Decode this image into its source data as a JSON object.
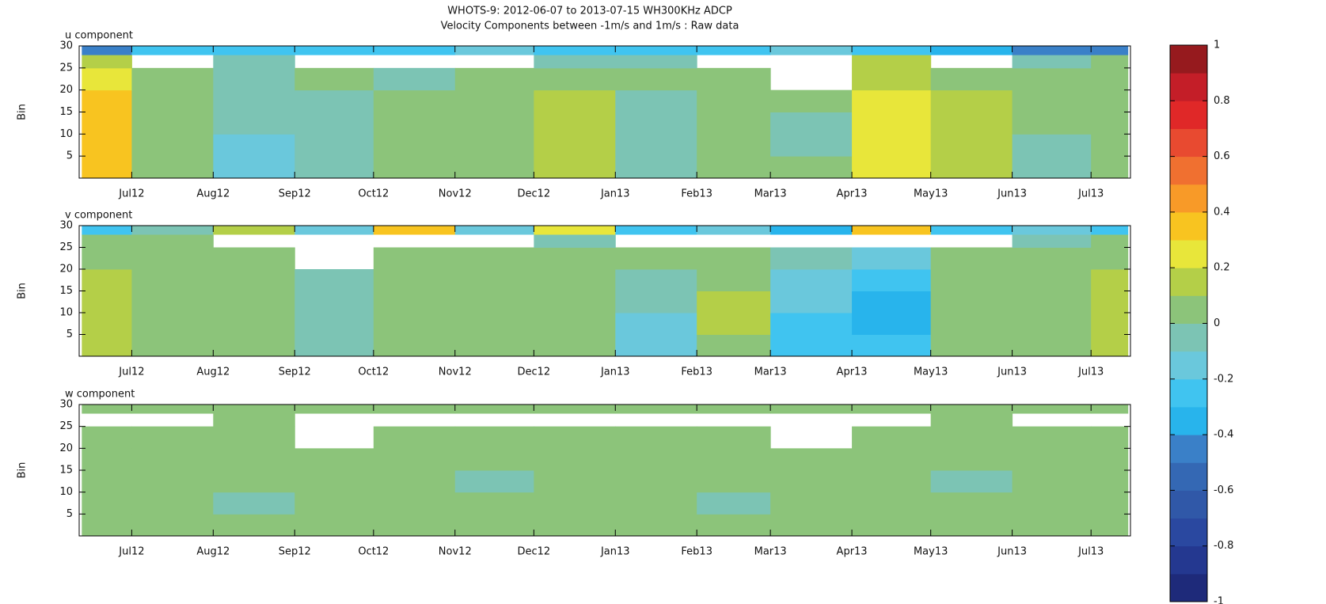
{
  "title": "WHOTS-9:  2012-06-07 to 2013-07-15 WH300KHz ADCP",
  "subtitle": "Velocity Components between -1m/s and 1m/s : Raw data",
  "colorbar": {
    "clim": [
      -1,
      1
    ],
    "colors": [
      "#1e2a7a",
      "#243890",
      "#2a48a0",
      "#3058a8",
      "#3468b4",
      "#3a80c8",
      "#28b4ec",
      "#40c4f0",
      "#6ac8dc",
      "#7cc4b4",
      "#8cc47a",
      "#b4cf48",
      "#e8e63a",
      "#f8c420",
      "#f89a28",
      "#f07030",
      "#e84a30",
      "#e02828",
      "#c41e28",
      "#961a1e"
    ],
    "ticks": [
      -1,
      -0.8,
      -0.6,
      -0.4,
      -0.2,
      0,
      0.2,
      0.4,
      0.6,
      0.8,
      1
    ]
  },
  "chart_data": [
    {
      "type": "heatmap",
      "title": "u component",
      "y_label": "Bin",
      "xbins": [
        "2012-06-12",
        "2012-07-01",
        "2012-08-01",
        "2012-09-01",
        "2012-10-01",
        "2012-11-01",
        "2012-12-01",
        "2013-01-01",
        "2013-02-01",
        "2013-03-01",
        "2013-04-01",
        "2013-05-01",
        "2013-06-01",
        "2013-07-01",
        "2013-07-15"
      ],
      "ybins": [
        0,
        5,
        10,
        15,
        20,
        25,
        28,
        30
      ],
      "xlim": [
        "2012-06-11",
        "2013-07-16"
      ],
      "ylim": [
        0,
        30
      ],
      "xticks": [
        {
          "value": "2012-07-01",
          "label": "Jul12"
        },
        {
          "value": "2012-08-01",
          "label": "Aug12"
        },
        {
          "value": "2012-09-01",
          "label": "Sep12"
        },
        {
          "value": "2012-10-01",
          "label": "Oct12"
        },
        {
          "value": "2012-11-01",
          "label": "Nov12"
        },
        {
          "value": "2012-12-01",
          "label": "Dec12"
        },
        {
          "value": "2013-01-01",
          "label": "Jan13"
        },
        {
          "value": "2013-02-01",
          "label": "Feb13"
        },
        {
          "value": "2013-03-01",
          "label": "Mar13"
        },
        {
          "value": "2013-04-01",
          "label": "Apr13"
        },
        {
          "value": "2013-05-01",
          "label": "May13"
        },
        {
          "value": "2013-06-01",
          "label": "Jun13"
        },
        {
          "value": "2013-07-01",
          "label": "Jul13"
        }
      ],
      "yticks": [
        5,
        10,
        15,
        20,
        25,
        30
      ],
      "values": [
        [
          0.3,
          0.05,
          -0.15,
          -0.1,
          0.0,
          0.05,
          0.1,
          -0.05,
          0.0,
          0.0,
          0.2,
          0.1,
          -0.05,
          0.05
        ],
        [
          0.3,
          0.05,
          -0.15,
          -0.1,
          0.0,
          0.05,
          0.1,
          -0.05,
          0.0,
          -0.05,
          0.2,
          0.1,
          -0.05,
          0.05
        ],
        [
          0.35,
          0.05,
          -0.1,
          -0.05,
          0.0,
          0.05,
          0.15,
          -0.05,
          0.0,
          -0.05,
          0.2,
          0.1,
          0.0,
          0.05
        ],
        [
          0.3,
          0.05,
          -0.1,
          -0.05,
          0.0,
          0.05,
          0.1,
          -0.05,
          0.0,
          0.0,
          0.2,
          0.1,
          0.0,
          0.05
        ],
        [
          0.25,
          0.0,
          -0.05,
          0.0,
          -0.05,
          0.0,
          0.05,
          0.0,
          0.0,
          null,
          0.1,
          0.05,
          0.0,
          0.05
        ],
        [
          0.1,
          null,
          -0.1,
          null,
          null,
          null,
          -0.1,
          -0.1,
          null,
          null,
          0.1,
          null,
          -0.1,
          0.0
        ],
        [
          -0.5,
          -0.3,
          -0.3,
          -0.3,
          -0.3,
          -0.2,
          -0.3,
          -0.3,
          -0.3,
          -0.2,
          -0.3,
          -0.4,
          -0.5,
          -0.5
        ]
      ]
    },
    {
      "type": "heatmap",
      "title": "v component",
      "y_label": "Bin",
      "xbins": [
        "2012-06-12",
        "2012-07-01",
        "2012-08-01",
        "2012-09-01",
        "2012-10-01",
        "2012-11-01",
        "2012-12-01",
        "2013-01-01",
        "2013-02-01",
        "2013-03-01",
        "2013-04-01",
        "2013-05-01",
        "2013-06-01",
        "2013-07-01",
        "2013-07-15"
      ],
      "ybins": [
        0,
        5,
        10,
        15,
        20,
        25,
        28,
        30
      ],
      "xlim": [
        "2012-06-11",
        "2013-07-16"
      ],
      "ylim": [
        0,
        30
      ],
      "xticks": [
        {
          "value": "2012-07-01",
          "label": "Jul12"
        },
        {
          "value": "2012-08-01",
          "label": "Aug12"
        },
        {
          "value": "2012-09-01",
          "label": "Sep12"
        },
        {
          "value": "2012-10-01",
          "label": "Oct12"
        },
        {
          "value": "2012-11-01",
          "label": "Nov12"
        },
        {
          "value": "2012-12-01",
          "label": "Dec12"
        },
        {
          "value": "2013-01-01",
          "label": "Jan13"
        },
        {
          "value": "2013-02-01",
          "label": "Feb13"
        },
        {
          "value": "2013-03-01",
          "label": "Mar13"
        },
        {
          "value": "2013-04-01",
          "label": "Apr13"
        },
        {
          "value": "2013-05-01",
          "label": "May13"
        },
        {
          "value": "2013-06-01",
          "label": "Jun13"
        },
        {
          "value": "2013-07-01",
          "label": "Jul13"
        }
      ],
      "yticks": [
        5,
        10,
        15,
        20,
        25,
        30
      ],
      "values": [
        [
          0.1,
          0.05,
          0.0,
          -0.1,
          0.05,
          0.0,
          0.05,
          -0.15,
          0.05,
          -0.25,
          -0.3,
          0.05,
          0.05,
          0.15
        ],
        [
          0.1,
          0.05,
          0.0,
          -0.1,
          0.05,
          0.0,
          0.05,
          -0.15,
          0.1,
          -0.25,
          -0.4,
          0.05,
          0.05,
          0.1
        ],
        [
          0.1,
          0.05,
          0.0,
          -0.1,
          0.05,
          0.0,
          0.05,
          -0.1,
          0.1,
          -0.2,
          -0.35,
          0.05,
          0.05,
          0.1
        ],
        [
          0.1,
          0.05,
          0.0,
          -0.05,
          0.05,
          0.0,
          0.05,
          -0.05,
          0.05,
          -0.15,
          -0.3,
          0.05,
          0.0,
          0.1
        ],
        [
          0.05,
          0.0,
          0.0,
          null,
          0.0,
          0.0,
          0.0,
          0.0,
          0.0,
          -0.1,
          -0.2,
          0.0,
          0.0,
          0.05
        ],
        [
          0.05,
          0.0,
          null,
          null,
          null,
          null,
          -0.1,
          null,
          null,
          null,
          null,
          null,
          -0.1,
          0.0
        ],
        [
          -0.3,
          -0.1,
          0.1,
          -0.2,
          0.3,
          -0.2,
          0.2,
          -0.3,
          -0.2,
          -0.4,
          0.3,
          -0.3,
          -0.2,
          -0.3
        ]
      ]
    },
    {
      "type": "heatmap",
      "title": "w component",
      "y_label": "Bin",
      "xbins": [
        "2012-06-12",
        "2012-07-01",
        "2012-08-01",
        "2012-09-01",
        "2012-10-01",
        "2012-11-01",
        "2012-12-01",
        "2013-01-01",
        "2013-02-01",
        "2013-03-01",
        "2013-04-01",
        "2013-05-01",
        "2013-06-01",
        "2013-07-01",
        "2013-07-15"
      ],
      "ybins": [
        0,
        5,
        10,
        15,
        20,
        25,
        28,
        30
      ],
      "xlim": [
        "2012-06-11",
        "2013-07-16"
      ],
      "ylim": [
        0,
        30
      ],
      "xticks": [
        {
          "value": "2012-07-01",
          "label": "Jul12"
        },
        {
          "value": "2012-08-01",
          "label": "Aug12"
        },
        {
          "value": "2012-09-01",
          "label": "Sep12"
        },
        {
          "value": "2012-10-01",
          "label": "Oct12"
        },
        {
          "value": "2012-11-01",
          "label": "Nov12"
        },
        {
          "value": "2012-12-01",
          "label": "Dec12"
        },
        {
          "value": "2013-01-01",
          "label": "Jan13"
        },
        {
          "value": "2013-02-01",
          "label": "Feb13"
        },
        {
          "value": "2013-03-01",
          "label": "Mar13"
        },
        {
          "value": "2013-04-01",
          "label": "Apr13"
        },
        {
          "value": "2013-05-01",
          "label": "May13"
        },
        {
          "value": "2013-06-01",
          "label": "Jun13"
        },
        {
          "value": "2013-07-01",
          "label": "Jul13"
        }
      ],
      "yticks": [
        5,
        10,
        15,
        20,
        25,
        30
      ],
      "values": [
        [
          0.05,
          0.0,
          0.0,
          0.0,
          0.0,
          0.0,
          0.0,
          0.0,
          0.0,
          0.0,
          0.0,
          0.0,
          0.0,
          0.05
        ],
        [
          0.0,
          0.0,
          -0.05,
          0.0,
          0.0,
          0.0,
          0.0,
          0.0,
          -0.05,
          0.0,
          0.0,
          0.0,
          0.0,
          0.0
        ],
        [
          0.0,
          0.0,
          0.0,
          0.0,
          0.0,
          -0.05,
          0.0,
          0.0,
          0.0,
          0.0,
          0.0,
          -0.05,
          0.0,
          0.0
        ],
        [
          0.0,
          0.0,
          0.0,
          0.0,
          0.0,
          0.0,
          0.0,
          0.0,
          0.0,
          0.0,
          0.0,
          0.0,
          0.0,
          0.0
        ],
        [
          0.0,
          0.0,
          0.0,
          null,
          0.0,
          0.0,
          0.0,
          0.0,
          0.0,
          null,
          0.0,
          0.0,
          0.0,
          0.0
        ],
        [
          null,
          null,
          0.0,
          null,
          null,
          null,
          null,
          null,
          null,
          null,
          null,
          0.0,
          null,
          null
        ],
        [
          0.0,
          0.0,
          0.0,
          0.0,
          0.0,
          0.0,
          0.0,
          0.0,
          0.0,
          0.0,
          0.0,
          0.0,
          0.0,
          0.0
        ]
      ]
    }
  ]
}
